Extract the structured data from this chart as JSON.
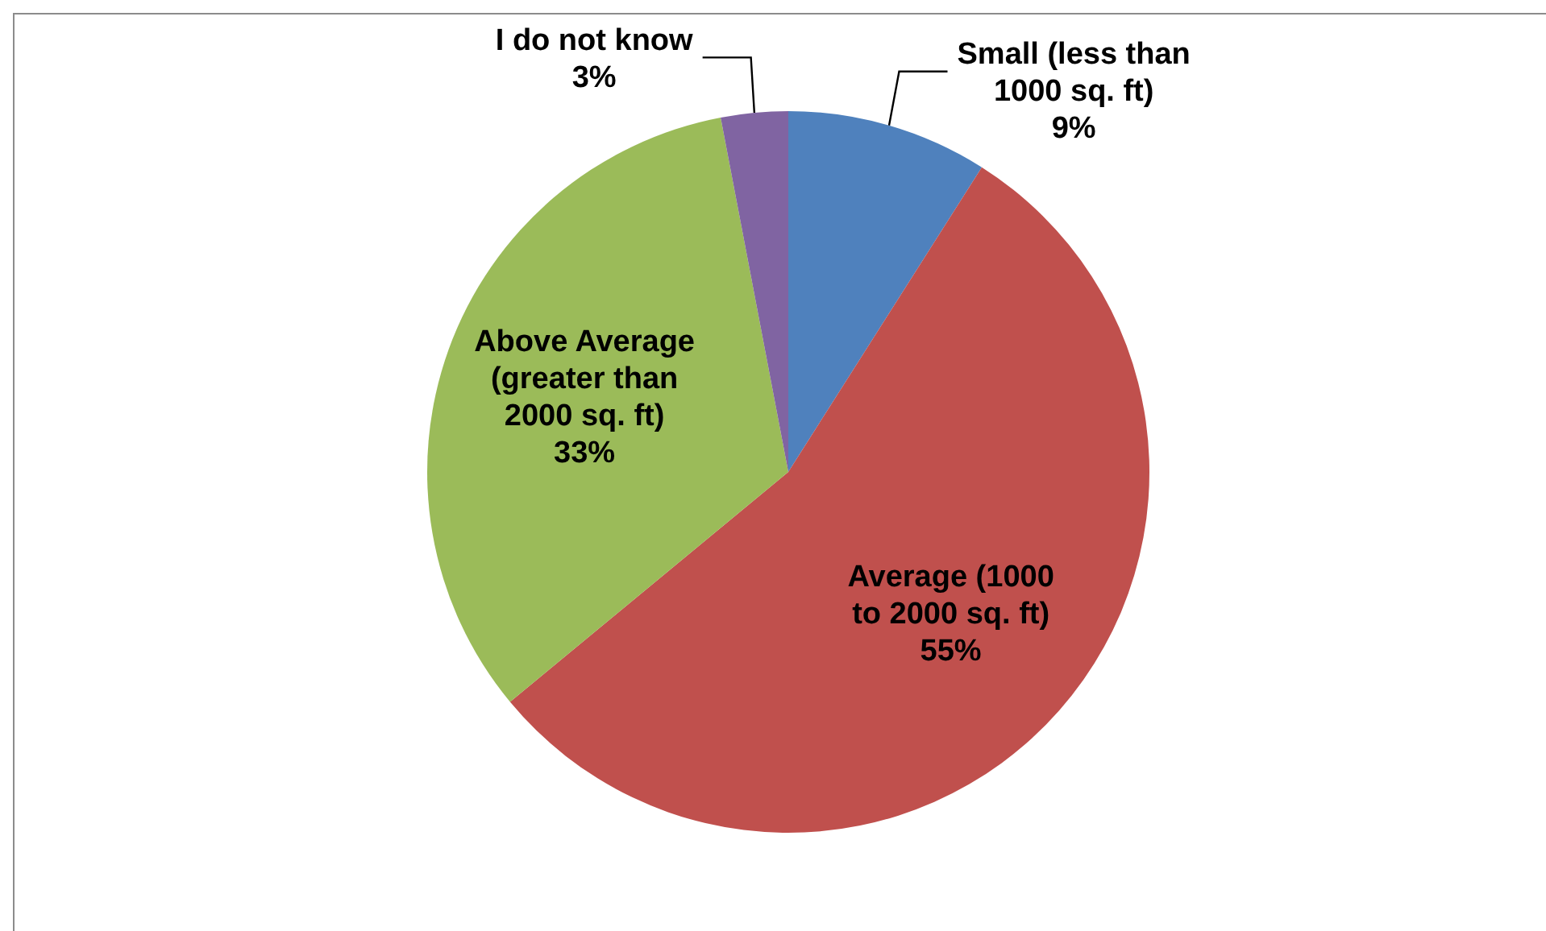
{
  "chart_data": {
    "type": "pie",
    "categories": [
      "Small (less than 1000 sq. ft)",
      "Average (1000 to 2000 sq. ft)",
      "Above Average (greater than 2000 sq. ft)",
      "I do not know"
    ],
    "values": [
      9,
      55,
      33,
      3
    ],
    "colors": [
      "#4f81bd",
      "#c0504d",
      "#9bbb59",
      "#8064a2"
    ],
    "value_labels": [
      "9%",
      "55%",
      "33%",
      "3%"
    ],
    "legend": false
  }
}
